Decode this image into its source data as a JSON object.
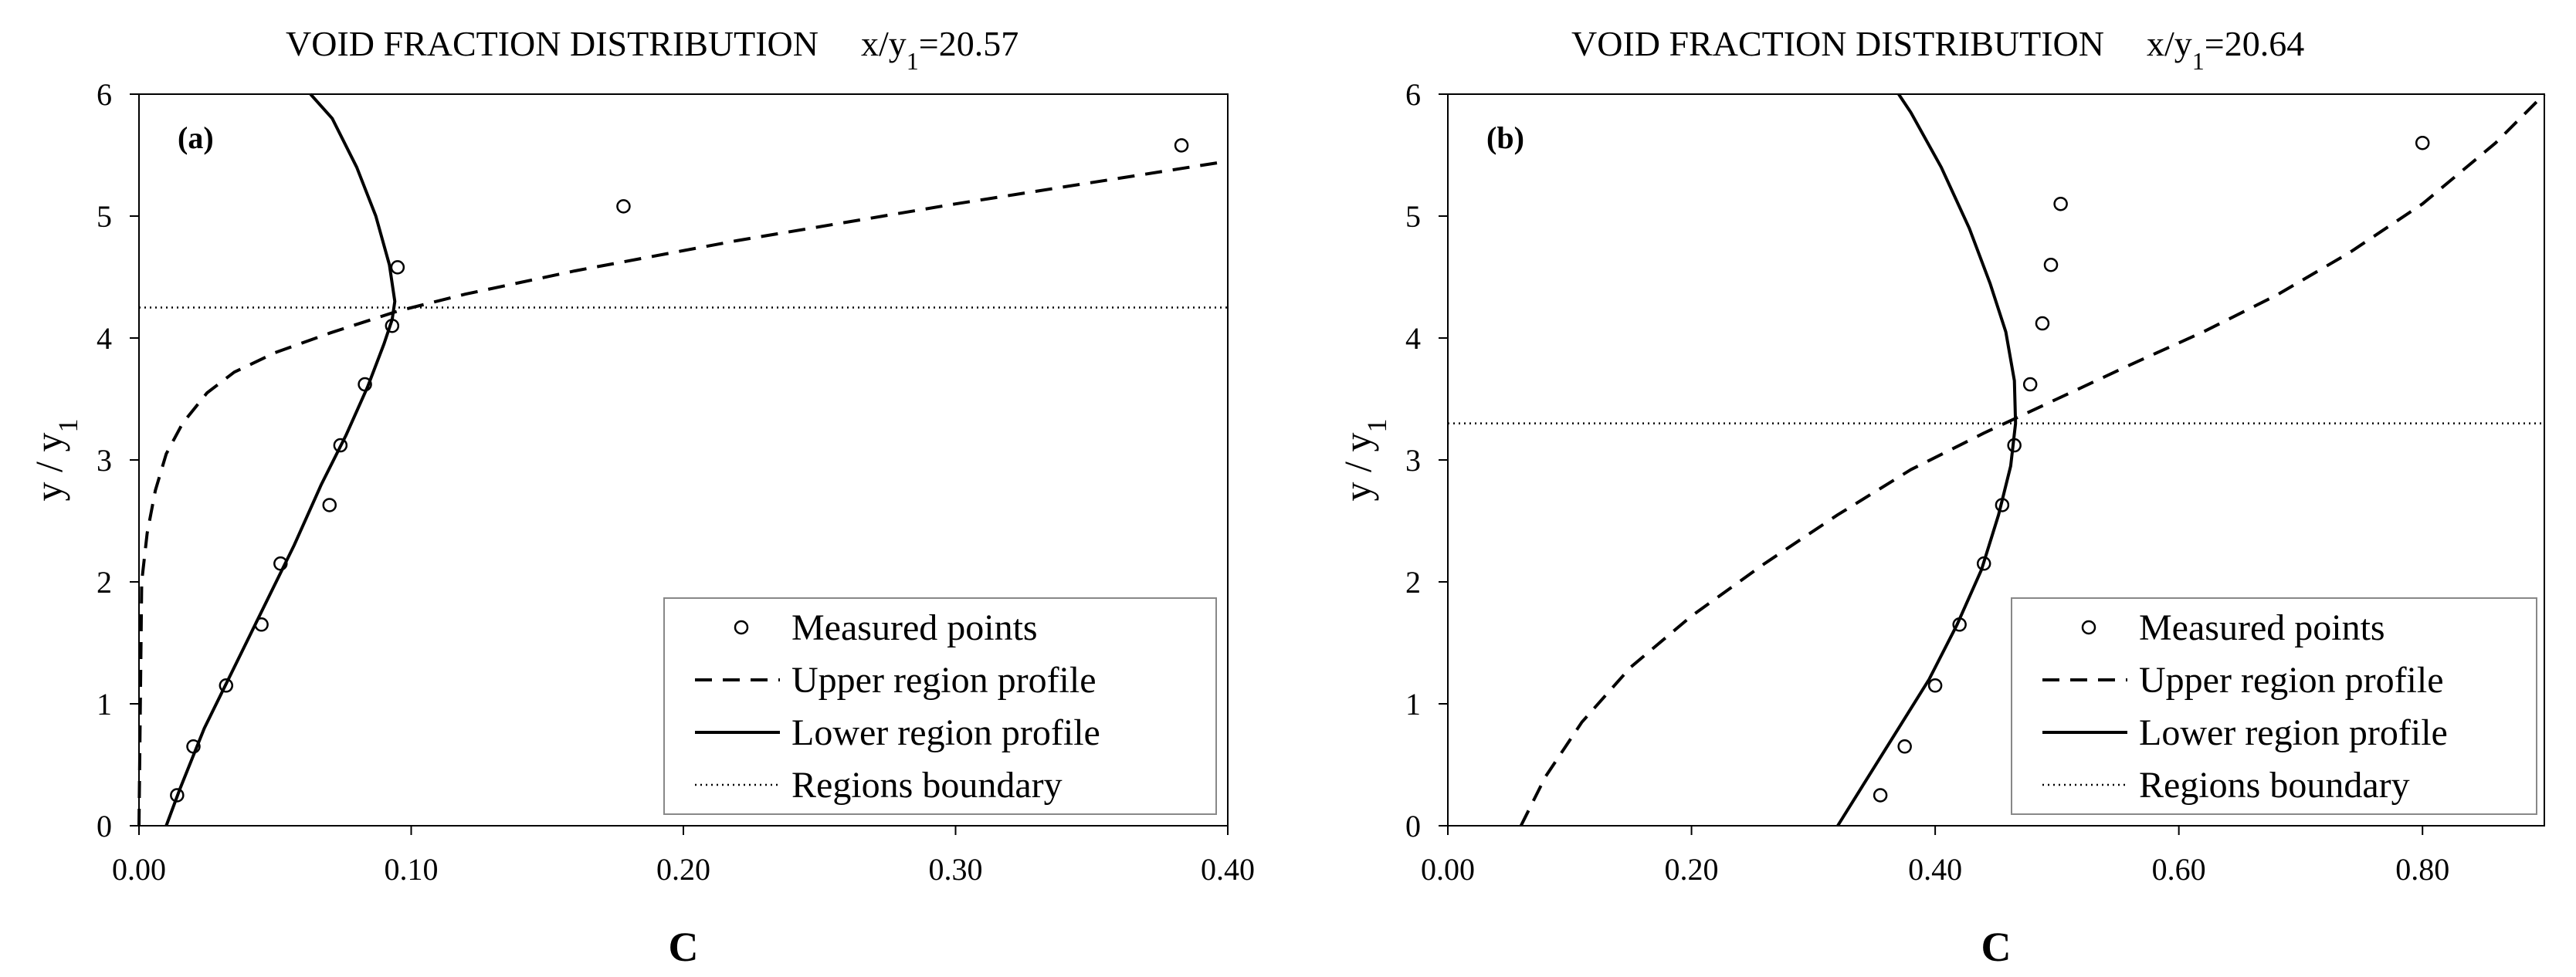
{
  "chart_data": [
    {
      "type": "line",
      "panel_label": "(a)",
      "title": "VOID FRACTION   DISTRIBUTION",
      "title_station_prefix": "x/y",
      "title_station_sub": "1",
      "title_station_value": "=20.57",
      "xlabel": "C",
      "ylabel": "y / y",
      "ylabel_sub": "1",
      "xlim": [
        0,
        0.4
      ],
      "ylim": [
        0,
        6
      ],
      "xticks": [
        "0.00",
        "0.10",
        "0.20",
        "0.30",
        "0.40"
      ],
      "xtick_values": [
        0,
        0.1,
        0.2,
        0.3,
        0.4
      ],
      "yticks": [
        "0",
        "1",
        "2",
        "3",
        "4",
        "5",
        "6"
      ],
      "ytick_values": [
        0,
        1,
        2,
        3,
        4,
        5,
        6
      ],
      "boundary_y": 4.25,
      "legend": [
        "Measured points",
        "Upper region profile",
        "Lower region profile",
        "Regions boundary"
      ],
      "legend_position": "bottom-right",
      "series": [
        {
          "name": "Measured points",
          "style": "markers",
          "x": [
            0.014,
            0.02,
            0.032,
            0.045,
            0.052,
            0.07,
            0.074,
            0.083,
            0.093,
            0.095,
            0.178,
            0.383
          ],
          "y": [
            0.25,
            0.65,
            1.15,
            1.65,
            2.15,
            2.63,
            3.12,
            3.62,
            4.1,
            4.58,
            5.08,
            5.58
          ]
        },
        {
          "name": "Upper region profile",
          "style": "dashed",
          "x": [
            0.0,
            0.001,
            0.003,
            0.006,
            0.01,
            0.016,
            0.025,
            0.035,
            0.05,
            0.07,
            0.095,
            0.12,
            0.16,
            0.22,
            0.3,
            0.4
          ],
          "y": [
            0.0,
            2.0,
            2.4,
            2.75,
            3.05,
            3.3,
            3.55,
            3.72,
            3.88,
            4.04,
            4.22,
            4.36,
            4.55,
            4.8,
            5.1,
            5.45
          ]
        },
        {
          "name": "Lower region profile",
          "style": "solid",
          "x": [
            0.01,
            0.015,
            0.024,
            0.035,
            0.046,
            0.057,
            0.067,
            0.076,
            0.084,
            0.09,
            0.093,
            0.094,
            0.092,
            0.087,
            0.08,
            0.071,
            0.063
          ],
          "y": [
            0.0,
            0.3,
            0.8,
            1.3,
            1.8,
            2.3,
            2.8,
            3.2,
            3.6,
            3.95,
            4.15,
            4.3,
            4.6,
            5.0,
            5.4,
            5.8,
            6.0
          ]
        }
      ]
    },
    {
      "type": "line",
      "panel_label": "(b)",
      "title": "VOID FRACTION   DISTRIBUTION",
      "title_station_prefix": "x/y",
      "title_station_sub": "1",
      "title_station_value": "=20.64",
      "xlabel": "C",
      "ylabel": "y / y",
      "ylabel_sub": "1",
      "xlim": [
        0,
        0.9
      ],
      "ylim": [
        0,
        6
      ],
      "xticks": [
        "0.00",
        "0.20",
        "0.40",
        "0.60",
        "0.80"
      ],
      "xtick_values": [
        0,
        0.2,
        0.4,
        0.6,
        0.8
      ],
      "yticks": [
        "0",
        "1",
        "2",
        "3",
        "4",
        "5",
        "6"
      ],
      "ytick_values": [
        0,
        1,
        2,
        3,
        4,
        5,
        6
      ],
      "boundary_y": 3.3,
      "legend": [
        "Measured points",
        "Upper region profile",
        "Lower region profile",
        "Regions boundary"
      ],
      "legend_position": "bottom-right",
      "series": [
        {
          "name": "Measured points",
          "style": "markers",
          "x": [
            0.355,
            0.375,
            0.4,
            0.42,
            0.44,
            0.455,
            0.465,
            0.478,
            0.488,
            0.495,
            0.503,
            0.8
          ],
          "y": [
            0.25,
            0.65,
            1.15,
            1.65,
            2.15,
            2.63,
            3.12,
            3.62,
            4.12,
            4.6,
            5.1,
            5.6
          ]
        },
        {
          "name": "Upper region profile",
          "style": "dashed",
          "x": [
            0.06,
            0.08,
            0.11,
            0.15,
            0.2,
            0.26,
            0.32,
            0.38,
            0.44,
            0.5,
            0.56,
            0.62,
            0.68,
            0.74,
            0.8,
            0.86,
            0.9
          ],
          "y": [
            0.0,
            0.4,
            0.85,
            1.3,
            1.72,
            2.15,
            2.55,
            2.92,
            3.22,
            3.5,
            3.78,
            4.05,
            4.35,
            4.7,
            5.1,
            5.6,
            6.0
          ]
        },
        {
          "name": "Lower region profile",
          "style": "solid",
          "x": [
            0.32,
            0.345,
            0.37,
            0.395,
            0.418,
            0.438,
            0.452,
            0.462,
            0.466,
            0.465,
            0.458,
            0.445,
            0.428,
            0.405,
            0.38,
            0.37
          ],
          "y": [
            0.0,
            0.4,
            0.8,
            1.2,
            1.65,
            2.1,
            2.55,
            2.95,
            3.3,
            3.65,
            4.05,
            4.45,
            4.9,
            5.4,
            5.85,
            6.0
          ]
        }
      ]
    }
  ]
}
